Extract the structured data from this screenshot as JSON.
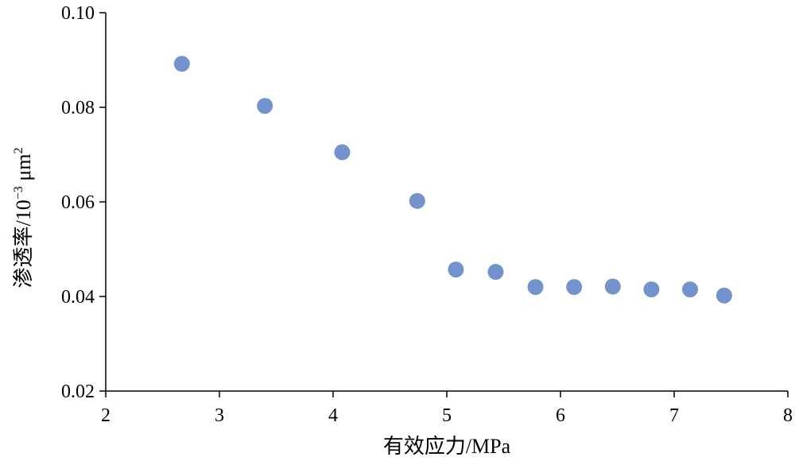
{
  "chart_data": {
    "type": "scatter",
    "xlabel": "有效应力/MPa",
    "ylabel_main": "渗透率/10",
    "ylabel_exp": "−3",
    "ylabel_unit": " μm",
    "ylabel_unit_exp": "2",
    "xlim": [
      2,
      8
    ],
    "ylim": [
      0.02,
      0.1
    ],
    "x_ticks": [
      2,
      3,
      4,
      5,
      6,
      7,
      8
    ],
    "x_tick_labels": [
      "2",
      "3",
      "4",
      "5",
      "6",
      "7",
      "8"
    ],
    "y_ticks": [
      0.02,
      0.04,
      0.06,
      0.08,
      0.1
    ],
    "y_tick_labels": [
      "0.02",
      "0.04",
      "0.06",
      "0.08",
      "0.10"
    ],
    "grid": false,
    "marker_color": "#7293cb",
    "series": [
      {
        "x": [
          2.67,
          3.4,
          4.08,
          4.74,
          5.08,
          5.43,
          5.78,
          6.12,
          6.46,
          6.8,
          7.14,
          7.44
        ],
        "y": [
          0.0892,
          0.0803,
          0.0705,
          0.0602,
          0.0457,
          0.0452,
          0.042,
          0.042,
          0.0421,
          0.0415,
          0.0415,
          0.0402
        ]
      }
    ]
  }
}
